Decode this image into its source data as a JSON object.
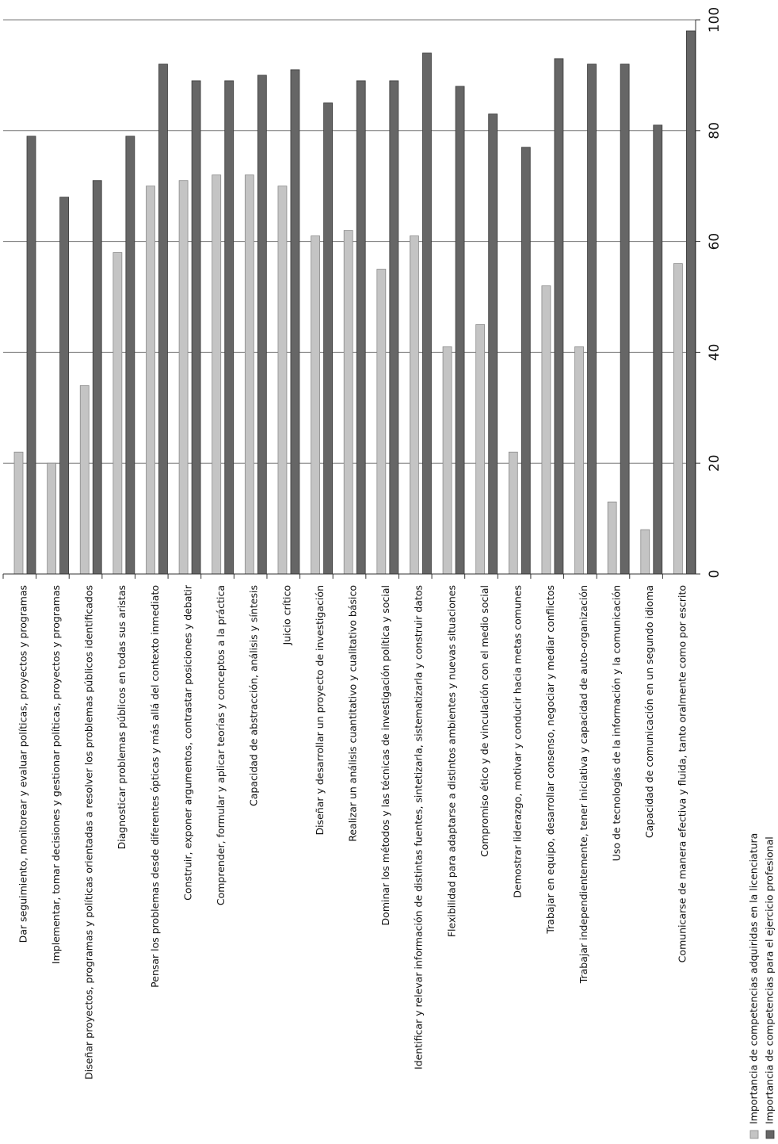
{
  "chart_data": {
    "type": "bar",
    "orientation": "rotated-90",
    "ylim": [
      0,
      100
    ],
    "yticks": [
      "0",
      "20",
      "40",
      "60",
      "80",
      "100"
    ],
    "grid": true,
    "legend_position": "bottom-left",
    "categories": [
      "Dar seguimiento, monitorear y evaluar políticas, proyectos y programas",
      "Implementar, tomar decisiones y gestionar políticas, proyectos y programas",
      "Diseñar proyectos, programas y políticas orientadas a resolver los problemas públicos identificados",
      "Diagnosticar problemas públicos en todas sus aristas",
      "Pensar los problemas desde diferentes ópticas y más allá del contexto inmediato",
      "Construir, exponer argumentos, contrastar posiciones y debatir",
      "Comprender, formular y aplicar teorías y conceptos a la práctica",
      "Capacidad de abstracción, análisis y síntesis",
      "Juicio crítico",
      "Diseñar y desarrollar un proyecto de investigación",
      "Realizar un análisis cuantitativo y cualitativo básico",
      "Dominar los métodos y las técnicas de investigación política y social",
      "Identificar y relevar información de distintas fuentes, sintetizarla, sistematizarla y construir datos",
      "Flexibilidad para adaptarse a distintos ambientes y nuevas situaciones",
      "Compromiso ético y de vinculación con el medio social",
      "Demostrar liderazgo, motivar y conducir hacia metas comunes",
      "Trabajar en equipo, desarrollar consenso, negociar y mediar conflictos",
      "Trabajar independientemente, tener iniciativa y capacidad de auto-organización",
      "Uso de tecnologías de la información y la comunicación",
      "Capacidad de comunicación en un segundo idioma",
      "Comunicarse de manera efectiva y fluida, tanto oralmente como por escrito"
    ],
    "series": [
      {
        "name": "Importancia de competencias adquiridas en la licenciatura",
        "color": "#c4c4c4",
        "values": [
          22,
          20,
          34,
          58,
          70,
          71,
          72,
          72,
          70,
          61,
          62,
          55,
          61,
          41,
          45,
          22,
          52,
          41,
          13,
          8,
          56
        ]
      },
      {
        "name": "Importancia de competencias para el ejercicio profesional",
        "color": "#666666",
        "values": [
          79,
          68,
          71,
          79,
          92,
          89,
          89,
          90,
          91,
          85,
          89,
          89,
          94,
          88,
          83,
          77,
          93,
          92,
          92,
          81,
          98
        ]
      }
    ]
  }
}
